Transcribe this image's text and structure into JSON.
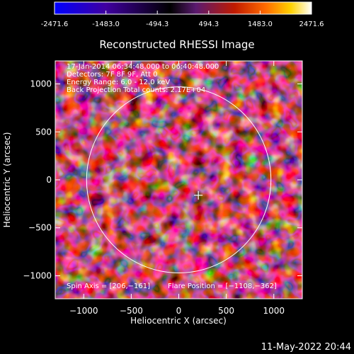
{
  "colorbar": {
    "ticks": [
      "-2471.6",
      "-1483.0",
      "-494.3",
      "494.3",
      "1483.0",
      "2471.6"
    ],
    "range": [
      -2471.6,
      2471.6
    ],
    "colors": [
      "#0000ff",
      "#4000a0",
      "#000000",
      "#5a1a70",
      "#c01a00",
      "#ff6a00",
      "#ffd200",
      "#ffffff"
    ]
  },
  "chart_data": {
    "type": "heatmap",
    "title": "Reconstructed RHESSI Image",
    "xlabel": "Heliocentric X (arcsec)",
    "ylabel": "Heliocentric Y (arcsec)",
    "xlim": [
      -1300,
      1300
    ],
    "ylim": [
      -1240,
      1240
    ],
    "xticks": [
      -1000,
      -500,
      0,
      500,
      1000
    ],
    "yticks": [
      -1000,
      -500,
      0,
      500,
      1000
    ],
    "xtick_labels": [
      "−1000",
      "−500",
      "0",
      "500",
      "1000"
    ],
    "ytick_labels": [
      "−1000",
      "−500",
      "0",
      "500",
      "1000"
    ],
    "solar_disk": {
      "center": [
        0,
        0
      ],
      "radius_arcsec": 970,
      "color": "#ffffff"
    },
    "spin_axis": [
      206,
      -161
    ],
    "flare_position": [
      -1108,
      -362
    ],
    "annotations": [
      "17-Jan-2014 06:34:48.000 to 06:40:48.000",
      "Detectors: 7F 8F 9F, Att 0",
      "Energy Range: 6.0 - 12.0 keV",
      "Back Projection    Total counts: 2.17E+04"
    ],
    "footer_labels": {
      "spin_axis": "Spin Axis = [206,−161]",
      "flare_position": "Flare Position = [−1108,−362]"
    }
  },
  "timestamp": "11-May-2022 20:44"
}
